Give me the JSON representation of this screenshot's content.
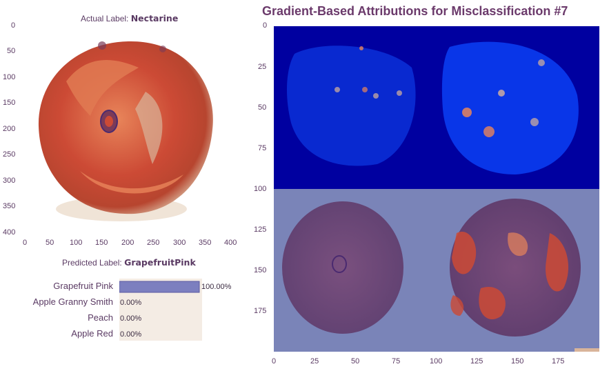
{
  "actual": {
    "prefix": "Actual Label: ",
    "value": "Nectarine"
  },
  "predicted": {
    "prefix": "Predicted Label: ",
    "value": "GrapefruitPink"
  },
  "attr_title": "Gradient-Based Attributions for Misclassification #7",
  "image_axes": {
    "x_ticks": [
      "0",
      "50",
      "100",
      "150",
      "200",
      "250",
      "300",
      "350",
      "400"
    ],
    "y_ticks": [
      "0",
      "50",
      "100",
      "150",
      "200",
      "250",
      "300",
      "350",
      "400"
    ]
  },
  "attr_axes": {
    "x_ticks": [
      "0",
      "25",
      "50",
      "75",
      "100",
      "125",
      "150",
      "175"
    ],
    "y_ticks": [
      "0",
      "25",
      "50",
      "75",
      "100",
      "125",
      "150",
      "175"
    ]
  },
  "chart_data": {
    "type": "bar",
    "orientation": "horizontal",
    "categories": [
      "Grapefruit Pink",
      "Apple Granny Smith",
      "Peach",
      "Apple Red"
    ],
    "values": [
      100.0,
      0.0,
      0.0,
      0.0
    ],
    "value_labels": [
      "100.00%",
      "0.00%",
      "0.00%",
      "0.00%"
    ],
    "xlim": [
      0,
      100
    ],
    "bar_color": "#7c7fbf"
  },
  "colors": {
    "fruit_red": "#cc4a35",
    "fruit_orange": "#e8855a",
    "fruit_highlight": "#d9b49a",
    "attr_dark": "#0000a0",
    "attr_bright": "#0a3cf0",
    "overlay_bg": "#7a84b8",
    "overlay_fruit": "#6a3f70"
  }
}
